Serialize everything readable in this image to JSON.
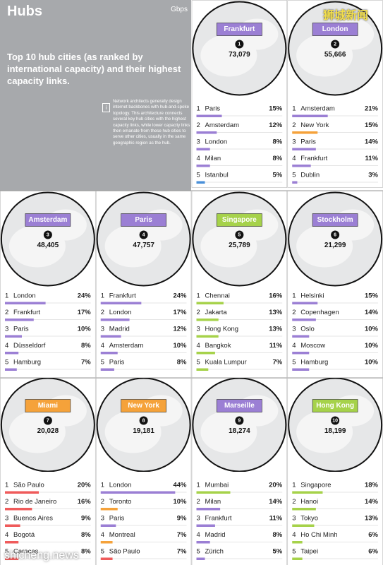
{
  "header": {
    "title": "Hubs",
    "unit": "Gbps",
    "subtitle": "Top 10 hub cities (as ranked by international capacity) and their highest capacity links.",
    "note": "Network architects generally design internet backbones with hub-and-spoke topology. This architecture connects several key hub cities with the highest capacity links, while lower capacity links then emanate from these hub cities to serve other cities, usually in the same geographic region as the hub."
  },
  "watermarks": [
    "狮城新闻",
    "shicheng.news"
  ],
  "hubs": [
    {
      "name": "Frankfurt",
      "rank": 1,
      "capacity": "73,079",
      "color": "#9b7fd4",
      "links": [
        {
          "rank": 1,
          "city": "Paris",
          "value": 15,
          "value_label": "15%",
          "color": "#9b7fd4"
        },
        {
          "rank": 2,
          "city": "Amsterdam",
          "value": 12,
          "value_label": "12%",
          "color": "#9b7fd4"
        },
        {
          "rank": 3,
          "city": "London",
          "value": 8,
          "value_label": "8%",
          "color": "#9b7fd4"
        },
        {
          "rank": 4,
          "city": "Milan",
          "value": 8,
          "value_label": "8%",
          "color": "#9b7fd4"
        },
        {
          "rank": 5,
          "city": "Istanbul",
          "value": 5,
          "value_label": "5%",
          "color": "#4a90d9"
        }
      ]
    },
    {
      "name": "London",
      "rank": 2,
      "capacity": "55,666",
      "color": "#9b7fd4",
      "links": [
        {
          "rank": 1,
          "city": "Amsterdam",
          "value": 21,
          "value_label": "21%",
          "color": "#9b7fd4"
        },
        {
          "rank": 2,
          "city": "New York",
          "value": 15,
          "value_label": "15%",
          "color": "#f5a23a"
        },
        {
          "rank": 3,
          "city": "Paris",
          "value": 14,
          "value_label": "14%",
          "color": "#9b7fd4"
        },
        {
          "rank": 4,
          "city": "Frankfurt",
          "value": 11,
          "value_label": "11%",
          "color": "#9b7fd4"
        },
        {
          "rank": 5,
          "city": "Dublin",
          "value": 3,
          "value_label": "3%",
          "color": "#9b7fd4"
        }
      ]
    },
    {
      "name": "Amsterdam",
      "rank": 3,
      "capacity": "48,405",
      "color": "#9b7fd4",
      "links": [
        {
          "rank": 1,
          "city": "London",
          "value": 24,
          "value_label": "24%",
          "color": "#9b7fd4"
        },
        {
          "rank": 2,
          "city": "Frankfurt",
          "value": 17,
          "value_label": "17%",
          "color": "#9b7fd4"
        },
        {
          "rank": 3,
          "city": "Paris",
          "value": 10,
          "value_label": "10%",
          "color": "#9b7fd4"
        },
        {
          "rank": 4,
          "city": "Düsseldorf",
          "value": 8,
          "value_label": "8%",
          "color": "#9b7fd4"
        },
        {
          "rank": 5,
          "city": "Hamburg",
          "value": 7,
          "value_label": "7%",
          "color": "#9b7fd4"
        }
      ]
    },
    {
      "name": "Paris",
      "rank": 4,
      "capacity": "47,757",
      "color": "#9b7fd4",
      "links": [
        {
          "rank": 1,
          "city": "Frankfurt",
          "value": 24,
          "value_label": "24%",
          "color": "#9b7fd4"
        },
        {
          "rank": 2,
          "city": "London",
          "value": 17,
          "value_label": "17%",
          "color": "#9b7fd4"
        },
        {
          "rank": 3,
          "city": "Madrid",
          "value": 12,
          "value_label": "12%",
          "color": "#9b7fd4"
        },
        {
          "rank": 4,
          "city": "Amsterdam",
          "value": 10,
          "value_label": "10%",
          "color": "#9b7fd4"
        },
        {
          "rank": 5,
          "city": "Paris",
          "value": 8,
          "value_label": "8%",
          "color": "#9b7fd4"
        }
      ]
    },
    {
      "name": "Singapore",
      "rank": 5,
      "capacity": "25,789",
      "color": "#a6d24a",
      "links": [
        {
          "rank": 1,
          "city": "Chennai",
          "value": 16,
          "value_label": "16%",
          "color": "#a6d24a"
        },
        {
          "rank": 2,
          "city": "Jakarta",
          "value": 13,
          "value_label": "13%",
          "color": "#a6d24a"
        },
        {
          "rank": 3,
          "city": "Hong Kong",
          "value": 13,
          "value_label": "13%",
          "color": "#a6d24a"
        },
        {
          "rank": 4,
          "city": "Bangkok",
          "value": 11,
          "value_label": "11%",
          "color": "#a6d24a"
        },
        {
          "rank": 5,
          "city": "Kuala Lumpur",
          "value": 7,
          "value_label": "7%",
          "color": "#a6d24a"
        }
      ]
    },
    {
      "name": "Stockholm",
      "rank": 6,
      "capacity": "21,299",
      "color": "#9b7fd4",
      "links": [
        {
          "rank": 1,
          "city": "Helsinki",
          "value": 15,
          "value_label": "15%",
          "color": "#9b7fd4"
        },
        {
          "rank": 2,
          "city": "Copenhagen",
          "value": 14,
          "value_label": "14%",
          "color": "#9b7fd4"
        },
        {
          "rank": 3,
          "city": "Oslo",
          "value": 10,
          "value_label": "10%",
          "color": "#9b7fd4"
        },
        {
          "rank": 4,
          "city": "Moscow",
          "value": 10,
          "value_label": "10%",
          "color": "#9b7fd4"
        },
        {
          "rank": 5,
          "city": "Hamburg",
          "value": 10,
          "value_label": "10%",
          "color": "#9b7fd4"
        }
      ]
    },
    {
      "name": "Miami",
      "rank": 7,
      "capacity": "20,028",
      "color": "#f5a23a",
      "links": [
        {
          "rank": 1,
          "city": "São Paulo",
          "value": 20,
          "value_label": "20%",
          "color": "#ef5b5b"
        },
        {
          "rank": 2,
          "city": "Rio de Janeiro",
          "value": 16,
          "value_label": "16%",
          "color": "#ef5b5b"
        },
        {
          "rank": 3,
          "city": "Buenos Aires",
          "value": 9,
          "value_label": "9%",
          "color": "#ef5b5b"
        },
        {
          "rank": 4,
          "city": "Bogotá",
          "value": 8,
          "value_label": "8%",
          "color": "#ef5b5b"
        },
        {
          "rank": 5,
          "city": "Caracas",
          "value": 8,
          "value_label": "8%",
          "color": "#ef5b5b"
        }
      ]
    },
    {
      "name": "New York",
      "rank": 8,
      "capacity": "19,181",
      "color": "#f5a23a",
      "links": [
        {
          "rank": 1,
          "city": "London",
          "value": 44,
          "value_label": "44%",
          "color": "#9b7fd4"
        },
        {
          "rank": 2,
          "city": "Toronto",
          "value": 10,
          "value_label": "10%",
          "color": "#f5a23a"
        },
        {
          "rank": 3,
          "city": "Paris",
          "value": 9,
          "value_label": "9%",
          "color": "#9b7fd4"
        },
        {
          "rank": 4,
          "city": "Montreal",
          "value": 7,
          "value_label": "7%",
          "color": "#f5a23a"
        },
        {
          "rank": 5,
          "city": "São Paulo",
          "value": 7,
          "value_label": "7%",
          "color": "#ef5b5b"
        }
      ]
    },
    {
      "name": "Marseille",
      "rank": 9,
      "capacity": "18,274",
      "color": "#9b7fd4",
      "links": [
        {
          "rank": 1,
          "city": "Mumbai",
          "value": 20,
          "value_label": "20%",
          "color": "#a6d24a"
        },
        {
          "rank": 2,
          "city": "Milan",
          "value": 14,
          "value_label": "14%",
          "color": "#9b7fd4"
        },
        {
          "rank": 3,
          "city": "Frankfurt",
          "value": 11,
          "value_label": "11%",
          "color": "#9b7fd4"
        },
        {
          "rank": 4,
          "city": "Madrid",
          "value": 8,
          "value_label": "8%",
          "color": "#9b7fd4"
        },
        {
          "rank": 5,
          "city": "Zürich",
          "value": 5,
          "value_label": "5%",
          "color": "#9b7fd4"
        }
      ]
    },
    {
      "name": "Hong Kong",
      "rank": 10,
      "capacity": "18,199",
      "color": "#a6d24a",
      "links": [
        {
          "rank": 1,
          "city": "Singapore",
          "value": 18,
          "value_label": "18%",
          "color": "#a6d24a"
        },
        {
          "rank": 2,
          "city": "Hanoi",
          "value": 14,
          "value_label": "14%",
          "color": "#a6d24a"
        },
        {
          "rank": 3,
          "city": "Tokyo",
          "value": 13,
          "value_label": "13%",
          "color": "#a6d24a"
        },
        {
          "rank": 4,
          "city": "Ho Chi Minh",
          "value": 6,
          "value_label": "6%",
          "color": "#a6d24a"
        },
        {
          "rank": 5,
          "city": "Taipei",
          "value": 6,
          "value_label": "6%",
          "color": "#a6d24a"
        }
      ]
    }
  ]
}
